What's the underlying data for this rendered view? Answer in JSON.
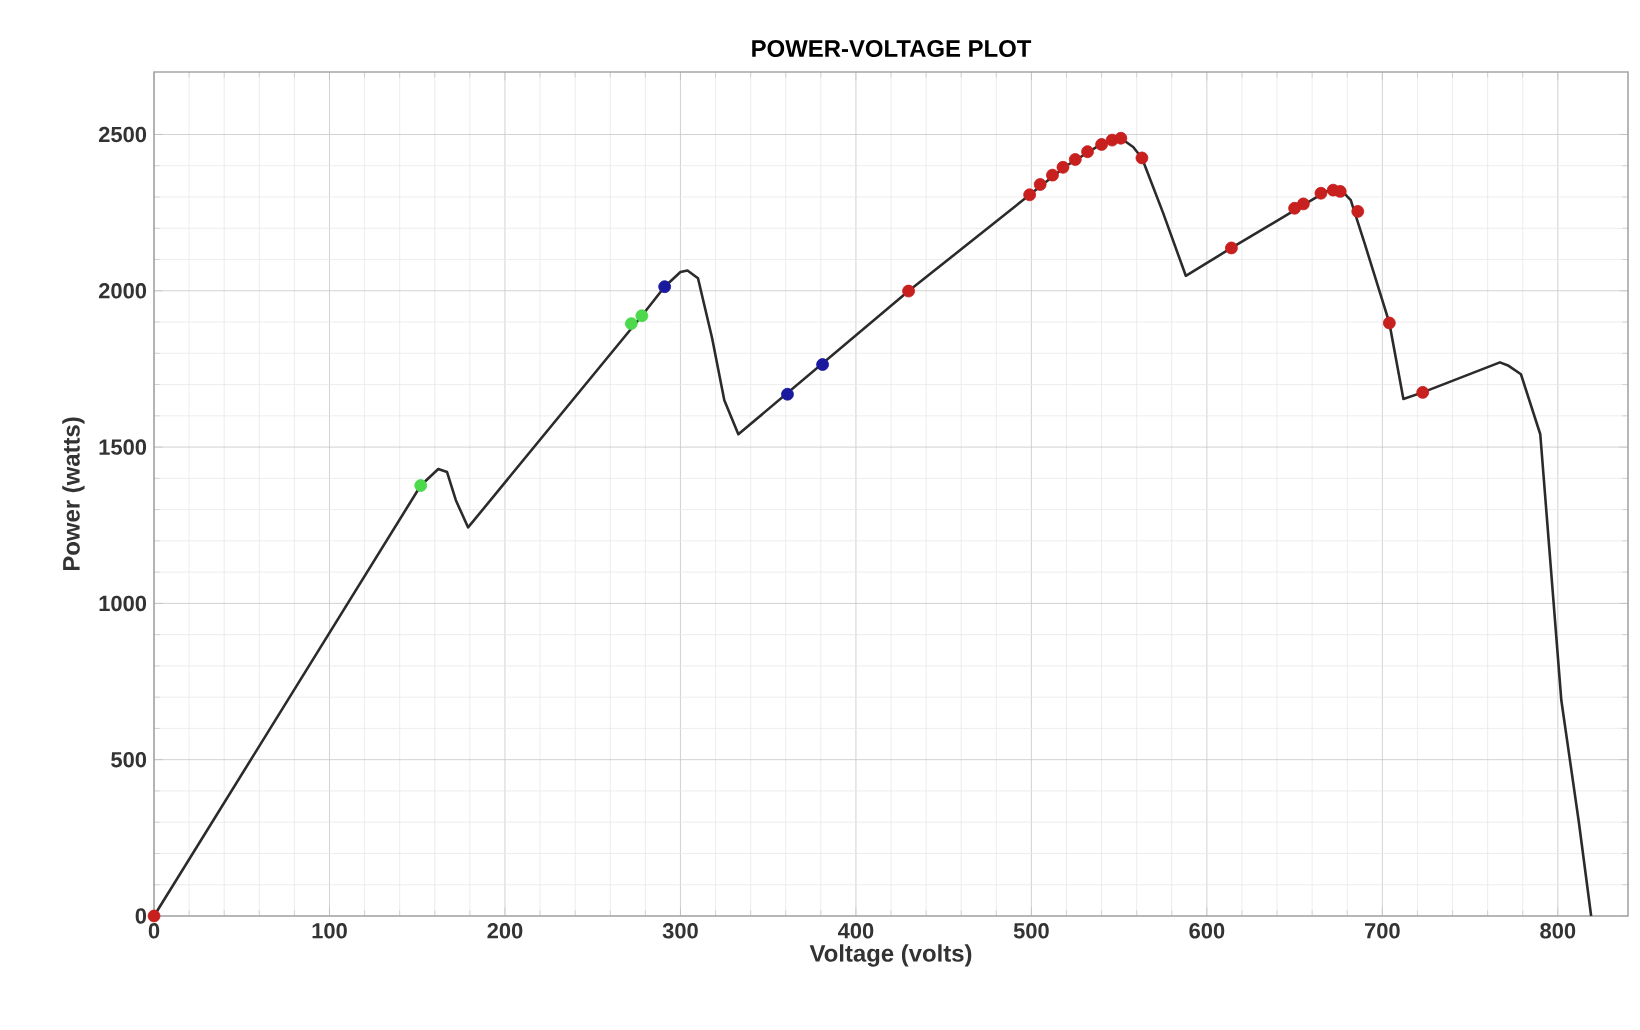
{
  "chart_data": {
    "type": "line",
    "title": "POWER-VOLTAGE PLOT",
    "xlabel": "Voltage (volts)",
    "ylabel": "Power (watts)",
    "xlim": [
      0,
      840
    ],
    "ylim": [
      0,
      2700
    ],
    "xticks": [
      0,
      100,
      200,
      300,
      400,
      500,
      600,
      700,
      800
    ],
    "yticks": [
      0,
      500,
      1000,
      1500,
      2000,
      2500
    ],
    "grid": true,
    "series": [
      {
        "type": "line",
        "color": "#2b2b2b",
        "marker": "none",
        "x": [
          0,
          152,
          162,
          167,
          172,
          179,
          278,
          291,
          300,
          304,
          310,
          318,
          325,
          333,
          430,
          499,
          520,
          540,
          551,
          558,
          563,
          575,
          588,
          614,
          668,
          676,
          682,
          690,
          704,
          712,
          723,
          767,
          772,
          779,
          790,
          802,
          812,
          819
        ],
        "values": [
          0,
          1377,
          1430,
          1420,
          1330,
          1243,
          1920,
          2013,
          2060,
          2065,
          2040,
          1850,
          1650,
          1541,
          1999,
          2307,
          2400,
          2470,
          2488,
          2460,
          2425,
          2250,
          2048,
          2137,
          2318,
          2325,
          2290,
          2150,
          1897,
          1654,
          1675,
          1771,
          1760,
          1733,
          1541,
          690,
          300,
          0
        ]
      },
      {
        "type": "scatter",
        "color": "#c8201e",
        "marker": "circle",
        "x": [
          0,
          430,
          499,
          505,
          512,
          518,
          525,
          532,
          540,
          546,
          551,
          563,
          614,
          650,
          655,
          665,
          672,
          676,
          686,
          704,
          723
        ],
        "values": [
          0,
          1999,
          2307,
          2340,
          2370,
          2395,
          2420,
          2445,
          2468,
          2482,
          2488,
          2425,
          2137,
          2264,
          2278,
          2312,
          2322,
          2318,
          2254,
          1897,
          1675
        ]
      },
      {
        "type": "scatter",
        "color": "#4cd94c",
        "marker": "circle",
        "x": [
          152,
          272,
          278
        ],
        "values": [
          1377,
          1895,
          1920
        ]
      },
      {
        "type": "scatter",
        "color": "#1a1a9e",
        "marker": "circle",
        "x": [
          291,
          361,
          381
        ],
        "values": [
          2013,
          1669,
          1764
        ]
      }
    ]
  }
}
